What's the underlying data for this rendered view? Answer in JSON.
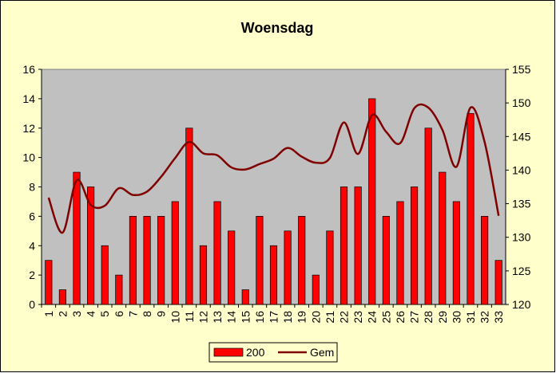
{
  "chart_data": {
    "type": "bar-line",
    "title": "Woensdag",
    "categories": [
      "1",
      "2",
      "3",
      "4",
      "5",
      "6",
      "7",
      "8",
      "9",
      "10",
      "11",
      "12",
      "13",
      "14",
      "15",
      "16",
      "17",
      "18",
      "19",
      "20",
      "21",
      "22",
      "23",
      "24",
      "25",
      "26",
      "27",
      "28",
      "29",
      "30",
      "31",
      "32",
      "33"
    ],
    "series": [
      {
        "name": "200",
        "type": "bar",
        "color": "#ff0000",
        "values": [
          3,
          1,
          9,
          8,
          4,
          2,
          6,
          6,
          6,
          7,
          12,
          4,
          7,
          5,
          1,
          6,
          4,
          5,
          6,
          2,
          5,
          8,
          8,
          14,
          6,
          7,
          8,
          12,
          9,
          7,
          13,
          6,
          3
        ]
      },
      {
        "name": "Gem",
        "type": "line",
        "axis": "y2",
        "color": "#800000",
        "values": [
          135.9,
          130.7,
          138.5,
          134.8,
          134.7,
          137.3,
          136.3,
          136.8,
          139.0,
          141.8,
          144.2,
          142.5,
          142.2,
          140.4,
          140.1,
          140.9,
          141.7,
          143.3,
          142.0,
          141.1,
          141.8,
          147.1,
          142.4,
          148.2,
          145.7,
          144.0,
          149.2,
          149.3,
          146.0,
          140.5,
          149.3,
          144.2,
          133.2
        ]
      }
    ],
    "ylim": [
      0,
      16
    ],
    "yticks": [
      0,
      2,
      4,
      6,
      8,
      10,
      12,
      14,
      16
    ],
    "y2lim": [
      120,
      155
    ],
    "y2ticks": [
      120,
      125,
      130,
      135,
      140,
      145,
      150,
      155
    ],
    "legend": "bottom"
  }
}
